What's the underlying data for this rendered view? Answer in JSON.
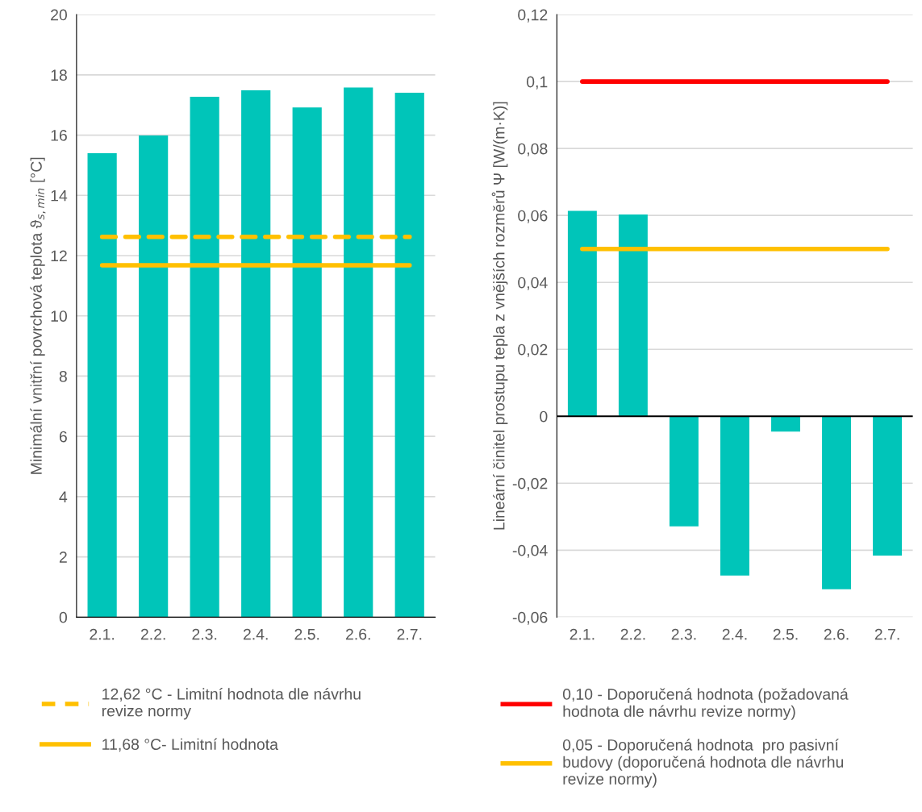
{
  "chart_data": [
    {
      "type": "bar",
      "ylabel": "Minimální vnitřní povrchová teplota ϑ$_{s,min}$ [°C]",
      "categories": [
        "2.1.",
        "2.2.",
        "2.3.",
        "2.4.",
        "2.5.",
        "2.6.",
        "2.7."
      ],
      "values": [
        15.4,
        15.99,
        17.27,
        17.49,
        16.92,
        17.58,
        17.41
      ],
      "color": "#00c5b9",
      "ylim": [
        0,
        20
      ],
      "yticks": [
        0,
        2,
        4,
        6,
        8,
        10,
        12,
        14,
        16,
        18,
        20
      ],
      "grid": "y",
      "legend": "bottom",
      "ref_lines": [
        {
          "axis": "y",
          "value": 12.62,
          "label": "12,62 °C - Limitní hodnota dle návrhu revize normy",
          "color": "#ffc000",
          "line_style": "dashed"
        },
        {
          "axis": "y",
          "value": 11.68,
          "label": "11,68 °C- Limitní hodnota",
          "color": "#ffc000",
          "line_style": "solid"
        }
      ]
    },
    {
      "type": "bar",
      "ylabel": "Lineární činitel prostupu tepla z vnějších rozměrů Ψ [W/(m·K)]",
      "categories": [
        "2.1.",
        "2.2.",
        "2.3.",
        "2.4.",
        "2.5.",
        "2.6.",
        "2.7."
      ],
      "values": [
        0.0614,
        0.0603,
        -0.0329,
        -0.0476,
        -0.0046,
        -0.0517,
        -0.0416
      ],
      "color": "#00c5b9",
      "ylim": [
        -0.06,
        0.12
      ],
      "yticks": [
        {
          "value": -0.06,
          "label": "-0,06"
        },
        {
          "value": -0.04,
          "label": "-0,04"
        },
        {
          "value": -0.02,
          "label": "-0,02"
        },
        0,
        {
          "value": 0.02,
          "label": "0,02"
        },
        {
          "value": 0.04,
          "label": "0,04"
        },
        {
          "value": 0.06,
          "label": "0,06"
        },
        {
          "value": 0.08,
          "label": "0,08"
        },
        {
          "value": 0.1,
          "label": "0,1"
        },
        {
          "value": 0.12,
          "label": "0,12"
        }
      ],
      "grid": "y",
      "legend": "bottom",
      "ref_lines": [
        {
          "axis": "y",
          "value": 0.1,
          "label": "0,10 - Doporučená hodnota (požadovaná hodnota dle návrhu revize normy)",
          "color": "#ff0000",
          "line_style": "solid"
        },
        {
          "axis": "y",
          "value": 0.05,
          "label": "0,05 - Doporučená hodnota  pro pasivní budovy (doporučená hodnota dle návrhu revize normy)",
          "color": "#ffc000",
          "line_style": "solid"
        }
      ]
    }
  ]
}
